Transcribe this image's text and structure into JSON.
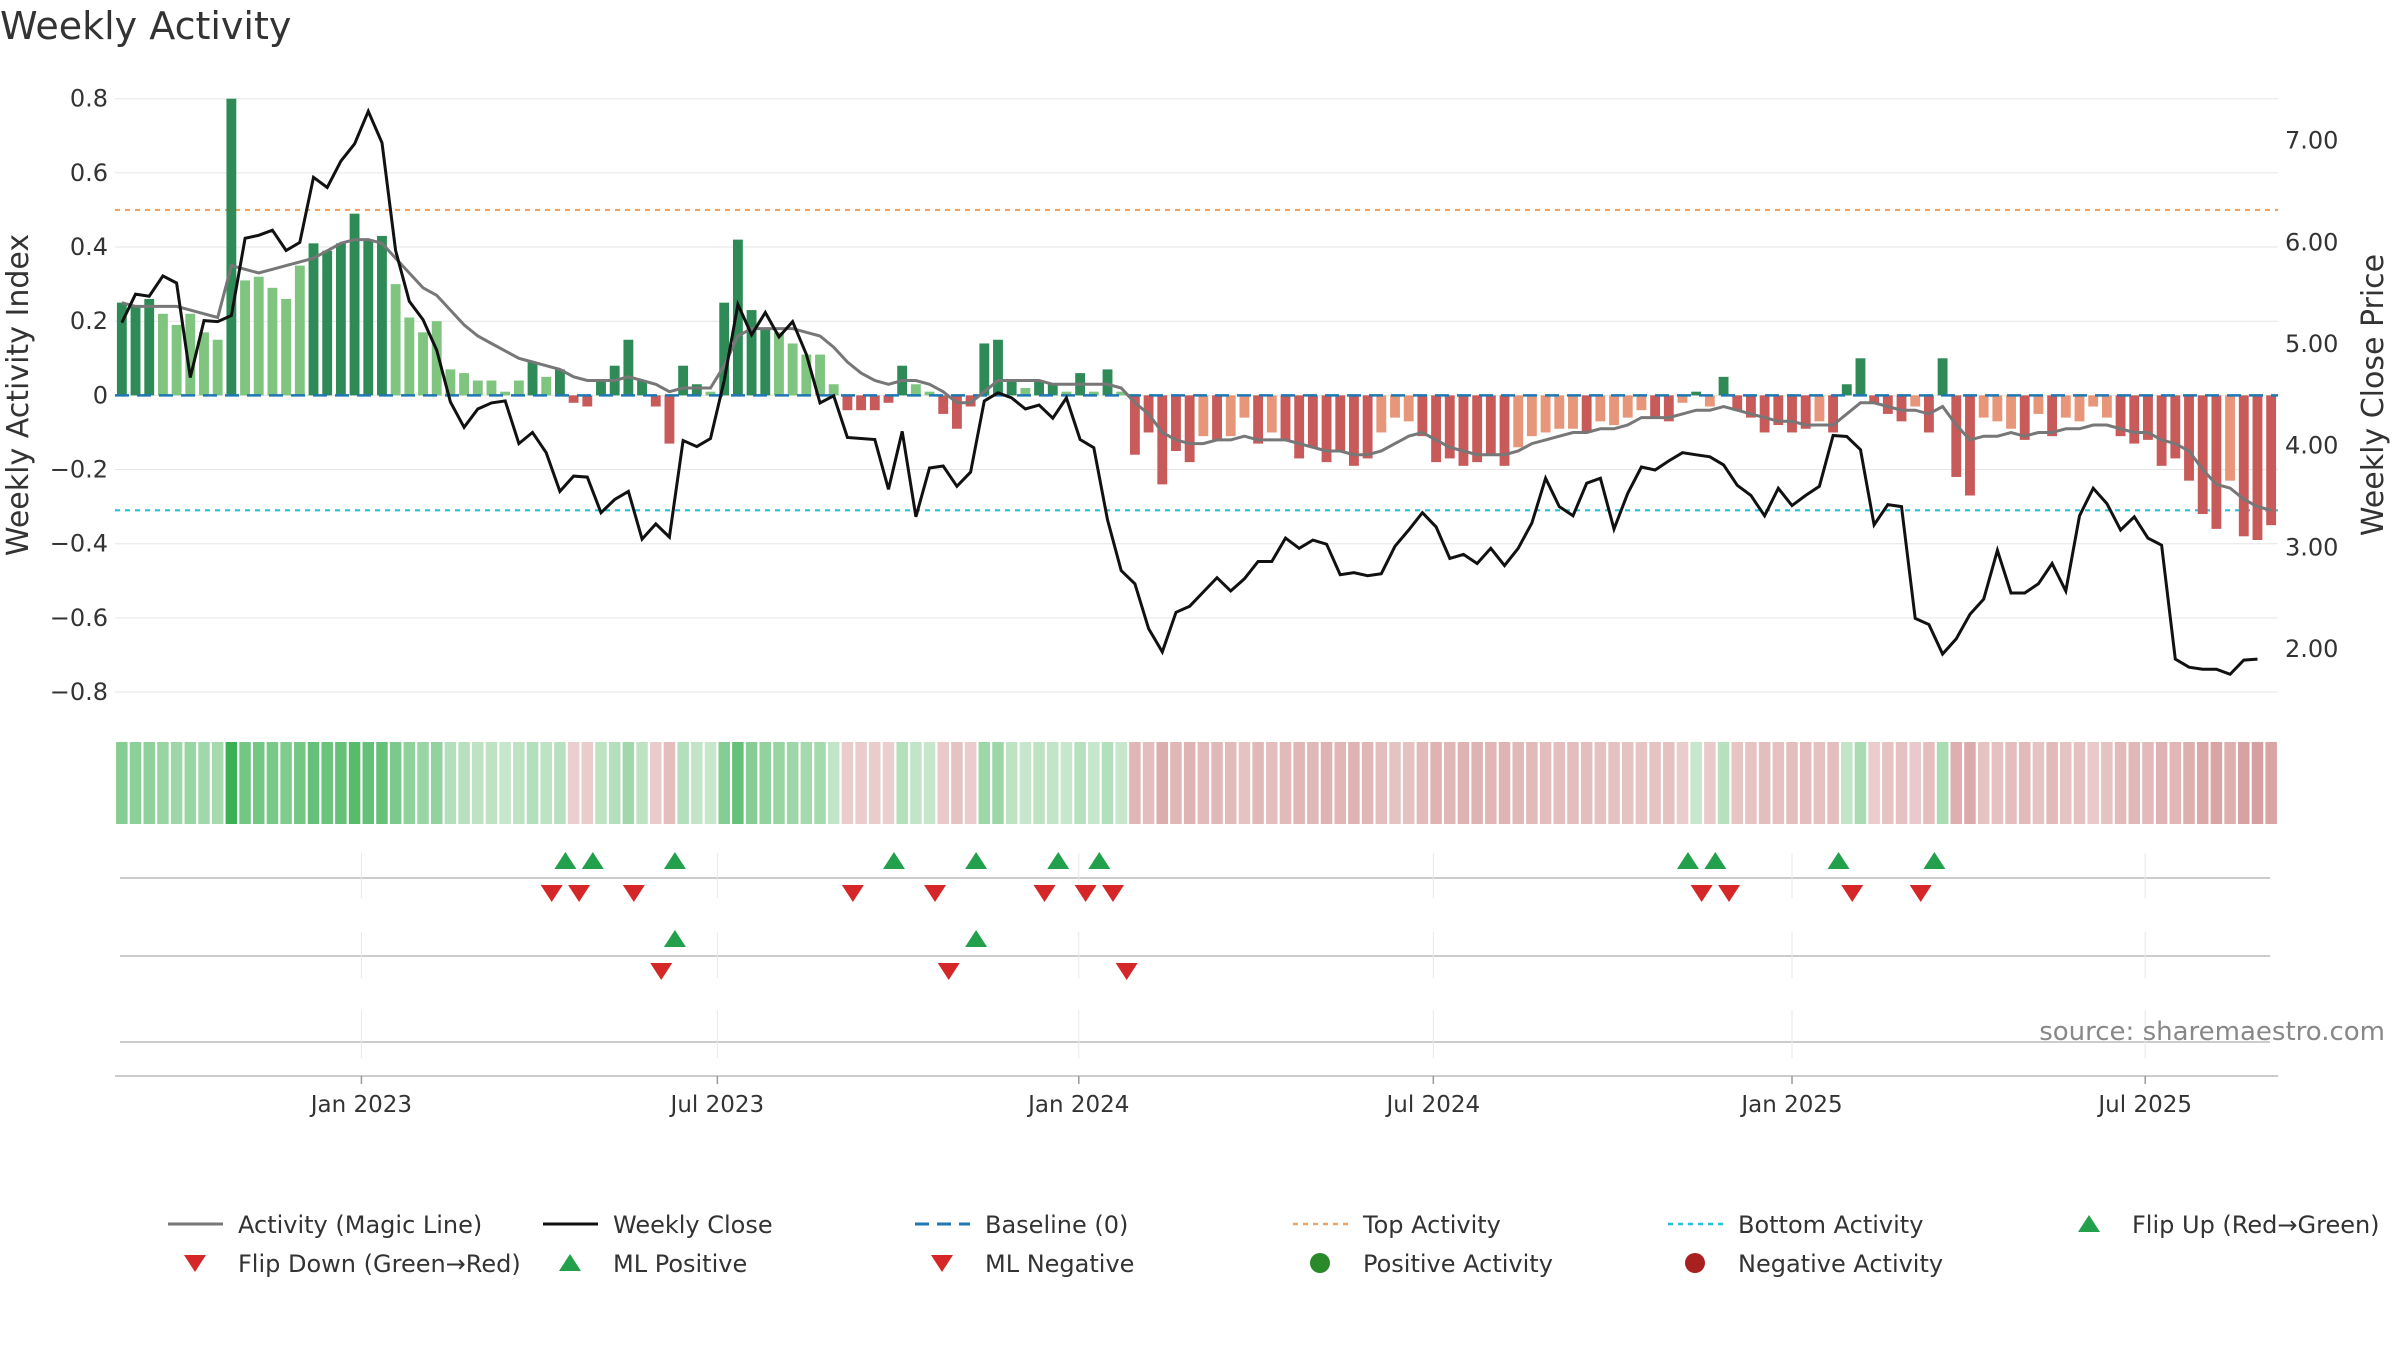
{
  "chart_data": {
    "type": "bar",
    "title": "Weekly Activity",
    "ylabel": "Weekly Activity Index",
    "y2label": "Weekly Close Price",
    "ylim": [
      -0.87,
      0.81
    ],
    "y2lim": [
      1.32,
      7.45
    ],
    "yticks": [
      {
        "v": 0.8,
        "label": "0.8"
      },
      {
        "v": 0.6,
        "label": "0.6"
      },
      {
        "v": 0.4,
        "label": "0.4"
      },
      {
        "v": 0.2,
        "label": "0.2"
      },
      {
        "v": 0,
        "label": "0"
      },
      {
        "v": -0.2,
        "label": "−0.2"
      },
      {
        "v": -0.4,
        "label": "−0.4"
      },
      {
        "v": -0.6,
        "label": "−0.6"
      },
      {
        "v": -0.8,
        "label": "−0.8"
      }
    ],
    "y2ticks": [
      {
        "v": 7.0,
        "label": "7.00"
      },
      {
        "v": 6.0,
        "label": "6.00"
      },
      {
        "v": 5.0,
        "label": "5.00"
      },
      {
        "v": 4.0,
        "label": "4.00"
      },
      {
        "v": 3.0,
        "label": "3.00"
      },
      {
        "v": 2.0,
        "label": "2.00"
      }
    ],
    "xticks": [
      {
        "w": 18,
        "label": "Jan 2023"
      },
      {
        "w": 44,
        "label": "Jul 2023"
      },
      {
        "w": 70.4,
        "label": "Jan 2024"
      },
      {
        "w": 96.3,
        "label": "Jul 2024"
      },
      {
        "w": 122.5,
        "label": "Jan 2025"
      },
      {
        "w": 148.3,
        "label": "Jul 2025"
      }
    ],
    "thresholds": {
      "top": 0.5,
      "bottom": -0.31,
      "baseline": 0
    },
    "activity": [
      0.25,
      0.24,
      0.26,
      0.22,
      0.19,
      0.22,
      0.17,
      0.15,
      0.8,
      0.31,
      0.32,
      0.29,
      0.26,
      0.35,
      0.41,
      0.39,
      0.41,
      0.49,
      0.42,
      0.43,
      0.3,
      0.21,
      0.17,
      0.2,
      0.07,
      0.06,
      0.04,
      0.04,
      0.01,
      0.04,
      0.09,
      0.05,
      0.07,
      -0.02,
      -0.03,
      0.04,
      0.08,
      0.15,
      0.04,
      -0.03,
      -0.13,
      0.08,
      0.03,
      0.01,
      0.25,
      0.42,
      0.23,
      0.18,
      0.17,
      0.14,
      0.11,
      0.11,
      0.03,
      -0.04,
      -0.04,
      -0.04,
      -0.02,
      0.08,
      0.03,
      0.01,
      -0.05,
      -0.09,
      -0.03,
      0.14,
      0.15,
      0.04,
      0.02,
      0.04,
      0.03,
      0.01,
      0.06,
      0.01,
      0.07,
      0.01,
      -0.16,
      -0.1,
      -0.24,
      -0.15,
      -0.18,
      -0.11,
      -0.12,
      -0.11,
      -0.06,
      -0.13,
      -0.1,
      -0.12,
      -0.17,
      -0.14,
      -0.18,
      -0.15,
      -0.19,
      -0.17,
      -0.1,
      -0.06,
      -0.07,
      -0.11,
      -0.18,
      -0.17,
      -0.19,
      -0.18,
      -0.16,
      -0.19,
      -0.14,
      -0.11,
      -0.1,
      -0.09,
      -0.09,
      -0.1,
      -0.07,
      -0.08,
      -0.06,
      -0.04,
      -0.06,
      -0.07,
      -0.02,
      0.01,
      -0.03,
      0.05,
      -0.04,
      -0.06,
      -0.1,
      -0.08,
      -0.1,
      -0.09,
      -0.07,
      -0.1,
      0.03,
      0.1,
      -0.02,
      -0.05,
      -0.07,
      -0.03,
      -0.1,
      0.1,
      -0.22,
      -0.27,
      -0.06,
      -0.07,
      -0.09,
      -0.12,
      -0.05,
      -0.11,
      -0.06,
      -0.07,
      -0.03,
      -0.06,
      -0.11,
      -0.13,
      -0.12,
      -0.19,
      -0.17,
      -0.23,
      -0.32,
      -0.36,
      -0.23,
      -0.38,
      -0.39,
      -0.35
    ],
    "magic_line": [
      0.25,
      0.24,
      0.24,
      0.24,
      0.24,
      0.23,
      0.22,
      0.21,
      0.35,
      0.34,
      0.33,
      0.34,
      0.35,
      0.36,
      0.37,
      0.39,
      0.41,
      0.42,
      0.42,
      0.41,
      0.37,
      0.33,
      0.29,
      0.27,
      0.23,
      0.19,
      0.16,
      0.14,
      0.12,
      0.1,
      0.09,
      0.08,
      0.07,
      0.05,
      0.04,
      0.04,
      0.04,
      0.05,
      0.04,
      0.03,
      0.01,
      0.02,
      0.02,
      0.02,
      0.08,
      0.16,
      0.18,
      0.18,
      0.18,
      0.18,
      0.17,
      0.16,
      0.13,
      0.09,
      0.06,
      0.04,
      0.03,
      0.04,
      0.04,
      0.03,
      0.01,
      -0.02,
      -0.02,
      0.01,
      0.04,
      0.04,
      0.04,
      0.04,
      0.03,
      0.03,
      0.03,
      0.03,
      0.03,
      0.02,
      -0.02,
      -0.05,
      -0.1,
      -0.12,
      -0.13,
      -0.13,
      -0.12,
      -0.12,
      -0.11,
      -0.12,
      -0.12,
      -0.12,
      -0.13,
      -0.14,
      -0.15,
      -0.15,
      -0.16,
      -0.16,
      -0.15,
      -0.13,
      -0.11,
      -0.1,
      -0.12,
      -0.14,
      -0.15,
      -0.16,
      -0.16,
      -0.16,
      -0.15,
      -0.13,
      -0.12,
      -0.11,
      -0.1,
      -0.1,
      -0.09,
      -0.09,
      -0.08,
      -0.06,
      -0.06,
      -0.06,
      -0.05,
      -0.04,
      -0.04,
      -0.03,
      -0.04,
      -0.05,
      -0.06,
      -0.07,
      -0.07,
      -0.08,
      -0.08,
      -0.08,
      -0.05,
      -0.02,
      -0.02,
      -0.03,
      -0.04,
      -0.04,
      -0.05,
      -0.03,
      -0.08,
      -0.12,
      -0.11,
      -0.11,
      -0.1,
      -0.11,
      -0.1,
      -0.1,
      -0.09,
      -0.09,
      -0.08,
      -0.08,
      -0.09,
      -0.1,
      -0.1,
      -0.12,
      -0.13,
      -0.15,
      -0.2,
      -0.24,
      -0.25,
      -0.28,
      -0.3,
      -0.31
    ],
    "weekly_close": [
      5.21,
      5.49,
      5.47,
      5.67,
      5.6,
      4.67,
      5.23,
      5.22,
      5.28,
      6.04,
      6.07,
      6.12,
      5.92,
      6.0,
      6.64,
      6.54,
      6.8,
      6.97,
      7.29,
      6.98,
      5.92,
      5.42,
      5.24,
      4.94,
      4.43,
      4.18,
      4.36,
      4.42,
      4.44,
      4.02,
      4.13,
      3.93,
      3.55,
      3.7,
      3.69,
      3.34,
      3.47,
      3.55,
      3.08,
      3.23,
      3.1,
      4.05,
      3.99,
      4.07,
      4.64,
      5.39,
      5.09,
      5.31,
      5.07,
      5.22,
      4.9,
      4.42,
      4.49,
      4.08,
      4.07,
      4.06,
      3.57,
      4.14,
      3.3,
      3.78,
      3.8,
      3.6,
      3.74,
      4.44,
      4.52,
      4.47,
      4.36,
      4.4,
      4.27,
      4.47,
      4.06,
      3.98,
      3.27,
      2.77,
      2.64,
      2.2,
      1.97,
      2.36,
      2.42,
      2.56,
      2.7,
      2.57,
      2.69,
      2.86,
      2.86,
      3.09,
      2.99,
      3.07,
      3.03,
      2.73,
      2.75,
      2.72,
      2.74,
      3.01,
      3.17,
      3.34,
      3.2,
      2.89,
      2.93,
      2.84,
      2.99,
      2.82,
      2.99,
      3.24,
      3.68,
      3.4,
      3.31,
      3.63,
      3.68,
      3.18,
      3.53,
      3.79,
      3.76,
      3.85,
      3.93,
      3.91,
      3.89,
      3.81,
      3.61,
      3.51,
      3.31,
      3.58,
      3.41,
      3.51,
      3.6,
      4.1,
      4.09,
      3.96,
      3.22,
      3.42,
      3.4,
      2.3,
      2.24,
      1.95,
      2.1,
      2.34,
      2.49,
      2.97,
      2.55,
      2.55,
      2.64,
      2.84,
      2.57,
      3.31,
      3.58,
      3.43,
      3.17,
      3.3,
      3.09,
      3.02,
      1.9,
      1.82,
      1.8,
      1.8,
      1.75,
      1.89,
      1.9
    ],
    "heat_strip": [
      0.55,
      0.52,
      0.5,
      0.45,
      0.42,
      0.45,
      0.4,
      0.38,
      0.95,
      0.65,
      0.65,
      0.62,
      0.58,
      0.65,
      0.72,
      0.7,
      0.72,
      0.8,
      0.72,
      0.72,
      0.6,
      0.5,
      0.45,
      0.48,
      0.3,
      0.28,
      0.25,
      0.25,
      0.2,
      0.25,
      0.3,
      0.25,
      0.28,
      -0.2,
      -0.22,
      0.25,
      0.3,
      0.4,
      0.25,
      -0.22,
      -0.35,
      0.3,
      0.22,
      0.2,
      0.55,
      0.72,
      0.55,
      0.48,
      0.45,
      0.42,
      0.38,
      0.38,
      0.22,
      -0.22,
      -0.22,
      -0.22,
      -0.2,
      0.3,
      0.22,
      0.2,
      -0.25,
      -0.3,
      -0.22,
      0.42,
      0.42,
      0.25,
      0.2,
      0.25,
      0.22,
      0.2,
      0.28,
      0.2,
      0.3,
      0.2,
      -0.42,
      -0.35,
      -0.5,
      -0.42,
      -0.45,
      -0.38,
      -0.4,
      -0.38,
      -0.3,
      -0.4,
      -0.35,
      -0.38,
      -0.42,
      -0.4,
      -0.45,
      -0.42,
      -0.45,
      -0.42,
      -0.35,
      -0.3,
      -0.32,
      -0.38,
      -0.45,
      -0.42,
      -0.45,
      -0.45,
      -0.42,
      -0.45,
      -0.4,
      -0.38,
      -0.35,
      -0.35,
      -0.35,
      -0.35,
      -0.32,
      -0.32,
      -0.3,
      -0.28,
      -0.3,
      -0.32,
      -0.22,
      0.2,
      -0.25,
      0.28,
      -0.28,
      -0.3,
      -0.35,
      -0.32,
      -0.35,
      -0.35,
      -0.32,
      -0.35,
      0.22,
      0.35,
      -0.22,
      -0.3,
      -0.32,
      -0.25,
      -0.35,
      0.35,
      -0.48,
      -0.52,
      -0.3,
      -0.32,
      -0.35,
      -0.38,
      -0.3,
      -0.38,
      -0.3,
      -0.32,
      -0.25,
      -0.3,
      -0.38,
      -0.4,
      -0.38,
      -0.45,
      -0.42,
      -0.48,
      -0.55,
      -0.58,
      -0.48,
      -0.6,
      -0.62,
      -0.58
    ],
    "flips": {
      "up": [
        32.9,
        34.9,
        40.9,
        56.9,
        62.9,
        68.9,
        71.9,
        114.9,
        116.9,
        125.9,
        132.9
      ],
      "down": [
        31.9,
        33.9,
        37.9,
        53.9,
        59.9,
        67.9,
        70.9,
        72.9,
        115.9,
        117.9,
        126.9,
        131.9
      ]
    },
    "ml_cross": {
      "up": [
        40.9,
        62.9
      ],
      "down": [
        39.9,
        60.9,
        73.9
      ]
    },
    "source": "source: sharemaestro.com",
    "legend": [
      {
        "label": "Activity (Magic Line)",
        "kind": "line",
        "color": "#777777"
      },
      {
        "label": "Weekly Close",
        "kind": "line",
        "color": "#111111"
      },
      {
        "label": "Baseline (0)",
        "kind": "dash",
        "color": "#1f77b4"
      },
      {
        "label": "Top Activity",
        "kind": "dot",
        "color": "#f4a261"
      },
      {
        "label": "Bottom Activity",
        "kind": "dot",
        "color": "#22c3d6"
      },
      {
        "label": "Flip Up (Red→Green)",
        "kind": "tri-up",
        "color": "#22a04b"
      },
      {
        "label": "Flip Down (Green→Red)",
        "kind": "tri-down",
        "color": "#d62728"
      },
      {
        "label": "ML Positive",
        "kind": "tri-up",
        "color": "#22a04b"
      },
      {
        "label": "ML Negative",
        "kind": "tri-down",
        "color": "#d62728"
      },
      {
        "label": "Positive Activity",
        "kind": "circle",
        "color": "#2a8a2a"
      },
      {
        "label": "Negative Activity",
        "kind": "circle",
        "color": "#a82020"
      }
    ]
  },
  "colors": {
    "bar_pos_strong": "#2e8b57",
    "bar_pos_light": "#7fc47f",
    "bar_neg_strong": "#c85a5a",
    "bar_neg_light": "#e8967a",
    "grid": "#e6e6e6"
  }
}
